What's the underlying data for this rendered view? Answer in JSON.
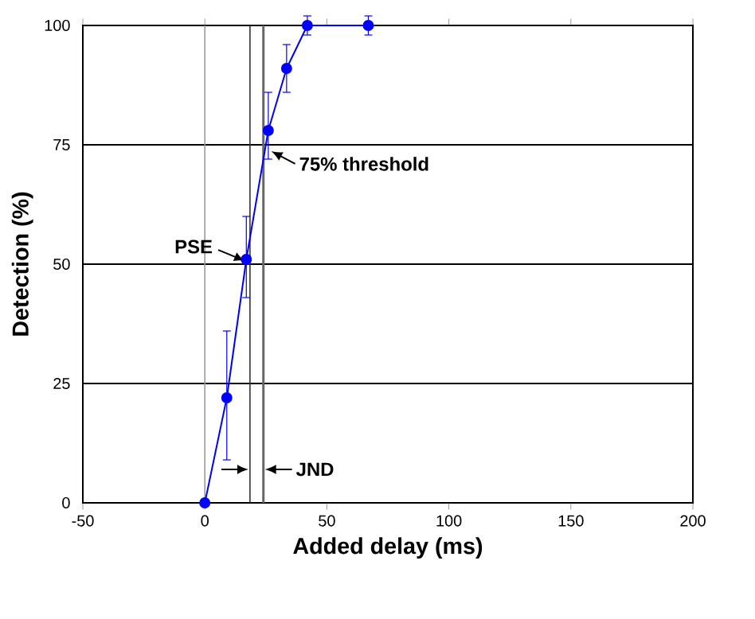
{
  "chart_data": {
    "type": "line",
    "xlabel": "Added delay (ms)",
    "ylabel": "Detection (%)",
    "x": [
      0,
      9,
      17,
      26,
      33.5,
      42,
      67
    ],
    "series": [
      {
        "color": "#0000ff",
        "values": [
          0,
          22,
          51,
          78,
          91,
          100,
          100
        ],
        "errors": [
          null,
          [
            9,
            36
          ],
          [
            43,
            60
          ],
          [
            72,
            86
          ],
          [
            86,
            96
          ],
          2,
          2
        ]
      }
    ],
    "xlim": [
      -50,
      200
    ],
    "xticks": [
      -50,
      0,
      50,
      100,
      150,
      200
    ],
    "ylim": [
      0,
      100
    ],
    "yticks": [
      0,
      25,
      50,
      75,
      100
    ],
    "grid": "y",
    "marker": "circle",
    "line_style": "solid",
    "ref_lines": [
      {
        "axis": "x",
        "value": 0,
        "color": "#999999"
      },
      {
        "axis": "x",
        "value": 18.5,
        "color": "#333333"
      },
      {
        "axis": "x",
        "value": 24,
        "color": "#666666"
      }
    ],
    "annotations": [
      {
        "text": "PSE",
        "x": 18.5,
        "y": 50
      },
      {
        "text": "75% threshold",
        "x": 24,
        "y": 75
      },
      "JND"
    ]
  }
}
